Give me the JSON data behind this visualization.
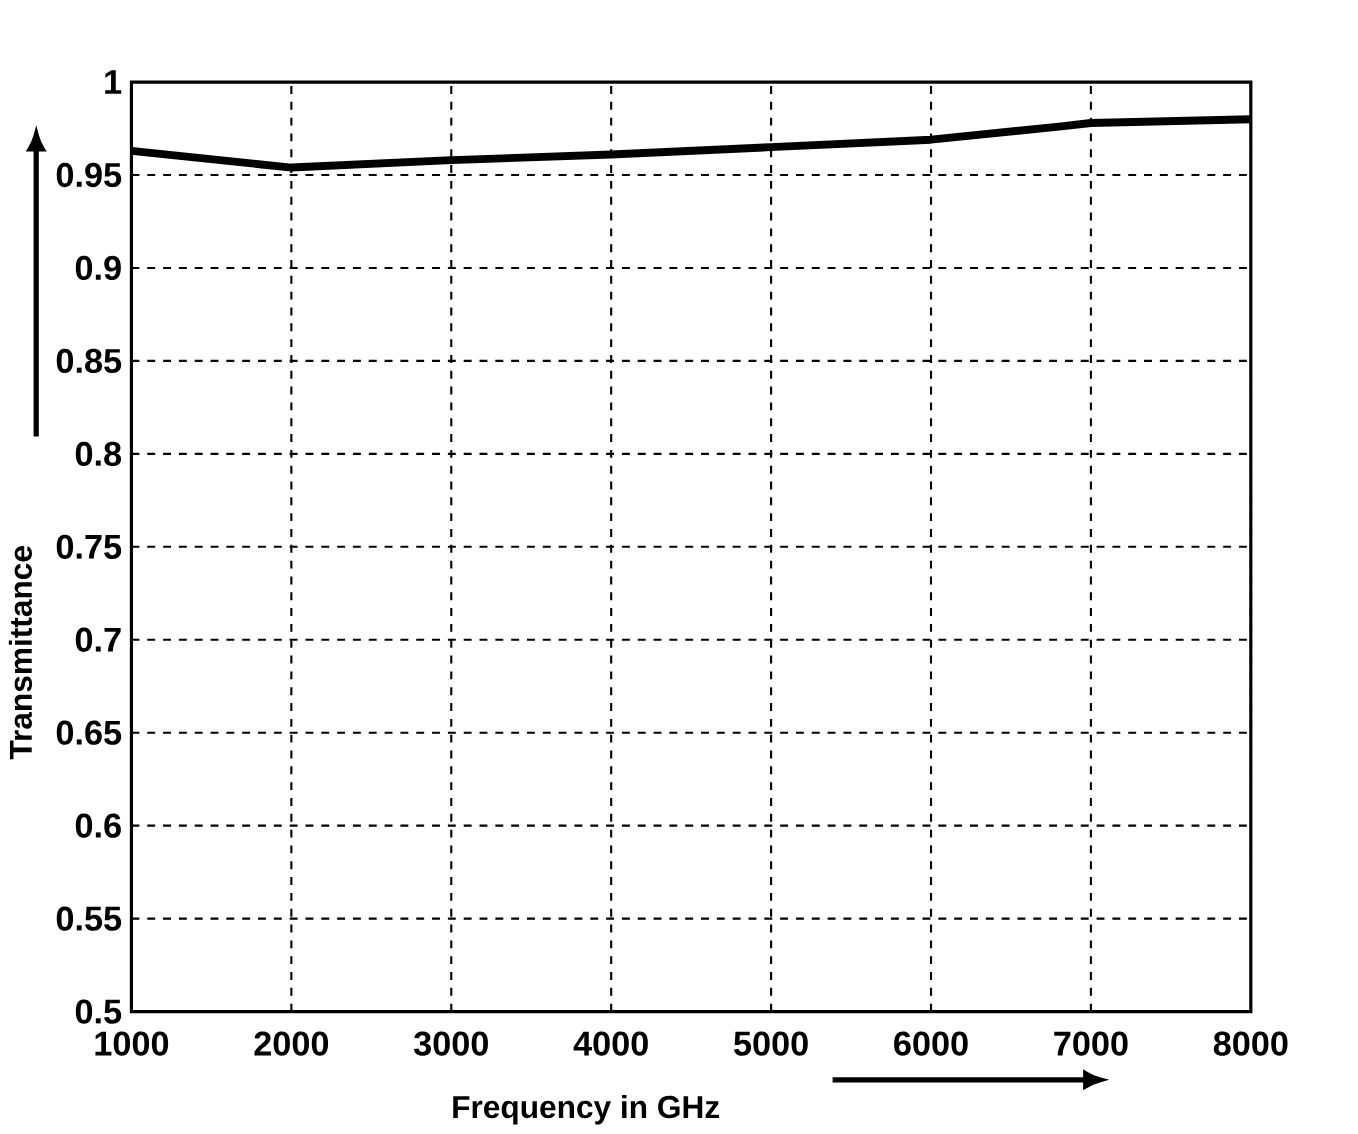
{
  "chart_data": {
    "type": "line",
    "xlabel": "Frequency in GHz",
    "ylabel": "Transmittance",
    "x": [
      1000,
      2000,
      3000,
      4000,
      5000,
      6000,
      6800,
      7000,
      8000
    ],
    "series": [
      {
        "color": "#000000",
        "values": [
          0.963,
          0.954,
          0.958,
          0.961,
          0.965,
          0.969,
          0.976,
          0.978,
          0.98
        ]
      }
    ],
    "xlim": [
      1000,
      8000
    ],
    "xticks": [
      1000,
      2000,
      3000,
      4000,
      5000,
      6000,
      7000,
      8000
    ],
    "ylim": [
      0.5,
      1
    ],
    "yticks": [
      0.5,
      0.55,
      0.6,
      0.65,
      0.7,
      0.75,
      0.8,
      0.85,
      0.9,
      0.95,
      1
    ],
    "grid": true,
    "marker": "none",
    "line_style": "solid"
  }
}
